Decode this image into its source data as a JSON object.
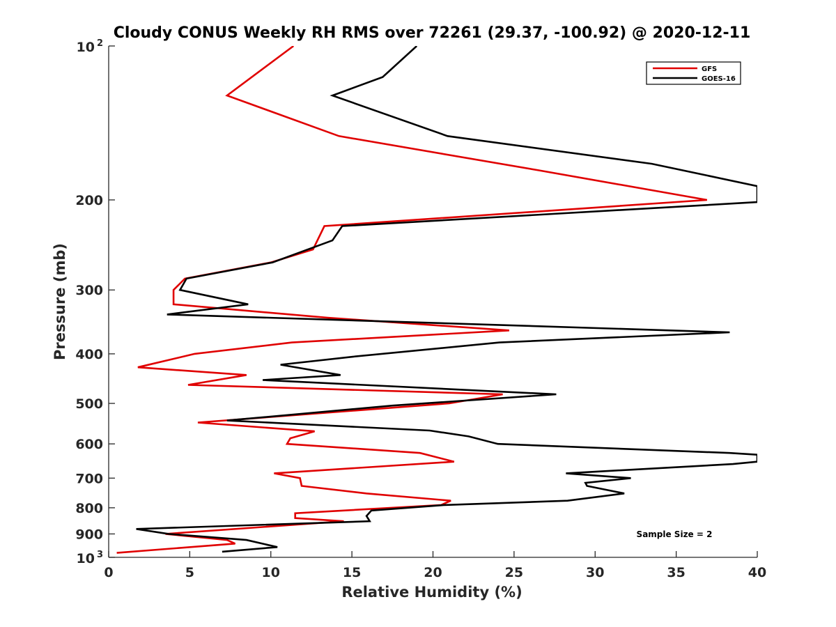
{
  "chart_data": {
    "type": "line",
    "title": "Cloudy CONUS Weekly RH RMS over 72261 (29.37, -100.92) @ 2020-12-11",
    "xlabel": "Relative Humidity (%)",
    "ylabel": "Pressure (mb)",
    "xlim": [
      0,
      40
    ],
    "ylim": [
      100,
      1000
    ],
    "yscale": "log",
    "y_reversed": true,
    "grid": false,
    "legend_position": "top-right",
    "x_ticks": [
      0,
      5,
      10,
      15,
      20,
      25,
      30,
      35,
      40
    ],
    "x_tick_labels": [
      "0",
      "5",
      "10",
      "15",
      "20",
      "25",
      "30",
      "35",
      "40"
    ],
    "y_ticks": [
      100,
      200,
      300,
      400,
      500,
      600,
      700,
      800,
      900,
      1000
    ],
    "y_tick_labels": [
      {
        "base": "10",
        "sup": "2"
      },
      {
        "base": "200",
        "sup": ""
      },
      {
        "base": "300",
        "sup": ""
      },
      {
        "base": "400",
        "sup": ""
      },
      {
        "base": "500",
        "sup": ""
      },
      {
        "base": "600",
        "sup": ""
      },
      {
        "base": "700",
        "sup": ""
      },
      {
        "base": "800",
        "sup": ""
      },
      {
        "base": "900",
        "sup": ""
      },
      {
        "base": "10",
        "sup": "3"
      }
    ],
    "annotation": "Sample Size = 2",
    "series": [
      {
        "name": "GFS",
        "color": "#e00000",
        "points": [
          {
            "x": 11.4,
            "y": 100
          },
          {
            "x": 7.3,
            "y": 125
          },
          {
            "x": 14.2,
            "y": 150
          },
          {
            "x": 26.5,
            "y": 175
          },
          {
            "x": 36.9,
            "y": 200
          },
          {
            "x": 13.3,
            "y": 225
          },
          {
            "x": 12.6,
            "y": 250
          },
          {
            "x": 10.0,
            "y": 265
          },
          {
            "x": 4.7,
            "y": 285
          },
          {
            "x": 4.0,
            "y": 300
          },
          {
            "x": 4.0,
            "y": 320
          },
          {
            "x": 13.5,
            "y": 340
          },
          {
            "x": 24.7,
            "y": 360
          },
          {
            "x": 11.3,
            "y": 380
          },
          {
            "x": 5.3,
            "y": 400
          },
          {
            "x": 1.8,
            "y": 425
          },
          {
            "x": 8.5,
            "y": 440
          },
          {
            "x": 4.9,
            "y": 460
          },
          {
            "x": 24.3,
            "y": 480
          },
          {
            "x": 21.0,
            "y": 500
          },
          {
            "x": 5.5,
            "y": 545
          },
          {
            "x": 12.7,
            "y": 567
          },
          {
            "x": 11.2,
            "y": 585
          },
          {
            "x": 11.0,
            "y": 600
          },
          {
            "x": 19.2,
            "y": 625
          },
          {
            "x": 21.3,
            "y": 650
          },
          {
            "x": 10.2,
            "y": 685
          },
          {
            "x": 11.8,
            "y": 700
          },
          {
            "x": 11.9,
            "y": 725
          },
          {
            "x": 15.9,
            "y": 750
          },
          {
            "x": 21.1,
            "y": 775
          },
          {
            "x": 20.5,
            "y": 790
          },
          {
            "x": 11.5,
            "y": 820
          },
          {
            "x": 11.5,
            "y": 838
          },
          {
            "x": 14.5,
            "y": 850
          },
          {
            "x": 3.5,
            "y": 900
          },
          {
            "x": 7.3,
            "y": 925
          },
          {
            "x": 7.8,
            "y": 940
          },
          {
            "x": 0.5,
            "y": 980
          }
        ]
      },
      {
        "name": "GOES-16",
        "color": "#000000",
        "points": [
          {
            "x": 19.0,
            "y": 100
          },
          {
            "x": 16.9,
            "y": 115
          },
          {
            "x": 13.8,
            "y": 125
          },
          {
            "x": 20.9,
            "y": 150
          },
          {
            "x": 33.5,
            "y": 170
          },
          {
            "x": 40.0,
            "y": 188
          },
          {
            "x": 40.0,
            "y": 202
          },
          {
            "x": 14.4,
            "y": 225
          },
          {
            "x": 13.8,
            "y": 240
          },
          {
            "x": 10.1,
            "y": 265
          },
          {
            "x": 4.8,
            "y": 285
          },
          {
            "x": 4.4,
            "y": 300
          },
          {
            "x": 8.6,
            "y": 320
          },
          {
            "x": 3.6,
            "y": 335
          },
          {
            "x": 38.3,
            "y": 363
          },
          {
            "x": 24.1,
            "y": 380
          },
          {
            "x": 15.1,
            "y": 405
          },
          {
            "x": 10.6,
            "y": 420
          },
          {
            "x": 14.3,
            "y": 440
          },
          {
            "x": 9.5,
            "y": 450
          },
          {
            "x": 27.6,
            "y": 480
          },
          {
            "x": 17.5,
            "y": 505
          },
          {
            "x": 7.3,
            "y": 540
          },
          {
            "x": 19.8,
            "y": 565
          },
          {
            "x": 22.2,
            "y": 580
          },
          {
            "x": 24.0,
            "y": 600
          },
          {
            "x": 38.3,
            "y": 625
          },
          {
            "x": 40.0,
            "y": 630
          },
          {
            "x": 40.0,
            "y": 650
          },
          {
            "x": 38.5,
            "y": 657
          },
          {
            "x": 28.2,
            "y": 685
          },
          {
            "x": 32.2,
            "y": 700
          },
          {
            "x": 29.4,
            "y": 715
          },
          {
            "x": 29.5,
            "y": 725
          },
          {
            "x": 31.8,
            "y": 750
          },
          {
            "x": 28.3,
            "y": 775
          },
          {
            "x": 20.7,
            "y": 790
          },
          {
            "x": 16.2,
            "y": 810
          },
          {
            "x": 15.9,
            "y": 830
          },
          {
            "x": 16.1,
            "y": 850
          },
          {
            "x": 1.7,
            "y": 880
          },
          {
            "x": 3.7,
            "y": 900
          },
          {
            "x": 8.5,
            "y": 925
          },
          {
            "x": 10.4,
            "y": 955
          },
          {
            "x": 7.0,
            "y": 975
          }
        ]
      }
    ]
  }
}
